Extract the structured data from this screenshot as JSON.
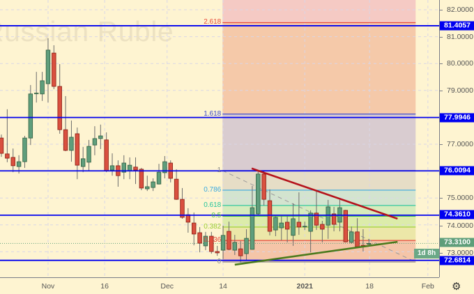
{
  "watermark": "Russian Ruble",
  "colors": {
    "background": "#fef4d1",
    "bull": "#5f9e7c",
    "bull_border": "#2f5e40",
    "bear": "#d9503f",
    "bear_border": "#8a1c12",
    "level_line": "#0000f0",
    "resistance_trendline": "#b5121b",
    "support_trendline": "#4a7a1c"
  },
  "chart_data": {
    "type": "candlestick",
    "ylim": [
      72.2,
      82.4
    ],
    "grid": true,
    "price_ticks": [
      "82.0000",
      "81.0000",
      "80.0000",
      "79.0000",
      "77.0000",
      "75.0000",
      "74.0000",
      "73.0000"
    ],
    "time_ticks": [
      {
        "label": "Nov",
        "bar": 8
      },
      {
        "label": "16",
        "bar": 17.7
      },
      {
        "label": "Dec",
        "bar": 28.4
      },
      {
        "label": "14",
        "bar": 38
      },
      {
        "label": "2021",
        "bar": 52
      },
      {
        "label": "18",
        "bar": 63.1
      },
      {
        "label": "Feb",
        "bar": 73.1
      }
    ],
    "candles": [
      [
        77.23,
        77.36,
        76.53,
        76.66
      ],
      [
        76.64,
        78.3,
        76.33,
        76.48
      ],
      [
        76.51,
        76.84,
        75.96,
        76.2
      ],
      [
        76.17,
        76.59,
        75.91,
        76.35
      ],
      [
        76.35,
        77.31,
        76.12,
        77.23
      ],
      [
        77.23,
        79.2,
        76.97,
        78.87
      ],
      [
        78.89,
        79.69,
        78.55,
        78.9
      ],
      [
        78.87,
        79.69,
        78.61,
        79.36
      ],
      [
        79.25,
        80.94,
        78.55,
        80.5
      ],
      [
        80.39,
        80.68,
        79.05,
        79.15
      ],
      [
        79.15,
        79.98,
        77.39,
        77.54
      ],
      [
        77.54,
        78.79,
        76.74,
        76.77
      ],
      [
        76.77,
        77.88,
        76.35,
        77.26
      ],
      [
        77.39,
        77.62,
        75.7,
        76.22
      ],
      [
        76.17,
        76.9,
        75.96,
        76.46
      ],
      [
        76.33,
        77.16,
        76.02,
        76.92
      ],
      [
        76.97,
        77.67,
        76.59,
        77.21
      ],
      [
        77.21,
        77.73,
        76.82,
        77.31
      ],
      [
        77.16,
        77.44,
        75.96,
        76.02
      ],
      [
        76.04,
        76.66,
        75.83,
        76.2
      ],
      [
        76.2,
        76.4,
        75.42,
        75.83
      ],
      [
        75.96,
        76.59,
        75.7,
        76.3
      ],
      [
        76.02,
        76.51,
        75.7,
        76.22
      ],
      [
        76.15,
        76.51,
        75.52,
        76.04
      ],
      [
        76.07,
        76.12,
        75.29,
        75.37
      ],
      [
        75.34,
        75.83,
        75.26,
        75.42
      ],
      [
        75.39,
        75.73,
        75.26,
        75.6
      ],
      [
        75.52,
        76.27,
        75.5,
        75.96
      ],
      [
        75.94,
        76.56,
        75.73,
        76.35
      ],
      [
        76.3,
        76.4,
        75.58,
        75.73
      ],
      [
        75.7,
        76.07,
        74.93,
        74.95
      ],
      [
        74.95,
        75.37,
        74.23,
        74.28
      ],
      [
        74.38,
        74.62,
        73.71,
        74.1
      ],
      [
        74.07,
        74.46,
        73.24,
        73.66
      ],
      [
        73.71,
        73.92,
        72.98,
        73.32
      ],
      [
        73.22,
        73.74,
        73.06,
        73.58
      ],
      [
        73.58,
        73.74,
        72.93,
        73.01
      ],
      [
        73.01,
        73.22,
        72.85,
        72.96
      ],
      [
        73.06,
        73.97,
        72.73,
        73.61
      ],
      [
        73.76,
        74.12,
        73.06,
        73.09
      ],
      [
        73.06,
        73.63,
        72.88,
        73.35
      ],
      [
        73.11,
        73.4,
        72.6,
        72.85
      ],
      [
        72.93,
        73.84,
        72.67,
        73.5
      ],
      [
        73.09,
        75.45,
        73.08,
        74.64
      ],
      [
        74.41,
        76.02,
        74.38,
        75.89
      ],
      [
        75.89,
        76.02,
        74.72,
        74.95
      ],
      [
        74.9,
        75.32,
        73.61,
        73.76
      ],
      [
        73.81,
        74.33,
        73.58,
        74.28
      ],
      [
        73.89,
        74.33,
        73.42,
        74.07
      ],
      [
        74.1,
        74.33,
        73.35,
        73.84
      ],
      [
        73.61,
        74.8,
        73.22,
        74.23
      ],
      [
        74.1,
        75.21,
        73.63,
        73.92
      ],
      [
        73.94,
        74.12,
        73.81,
        73.95
      ],
      [
        73.76,
        74.54,
        72.98,
        74.44
      ],
      [
        74.44,
        75.24,
        73.81,
        73.99
      ],
      [
        74.02,
        74.15,
        73.35,
        73.84
      ],
      [
        73.99,
        74.93,
        73.48,
        74.67
      ],
      [
        74.41,
        74.67,
        73.76,
        74.02
      ],
      [
        74.1,
        74.93,
        73.76,
        74.64
      ],
      [
        74.54,
        74.56,
        73.35,
        73.37
      ],
      [
        73.35,
        73.94,
        73.3,
        73.74
      ],
      [
        73.74,
        74.25,
        73.14,
        73.19
      ],
      [
        73.24,
        73.84,
        73.01,
        73.19
      ],
      [
        73.28,
        73.48,
        73.24,
        73.31
      ]
    ],
    "horizontal_levels": [
      {
        "label": "81.4057",
        "price": 81.4057
      },
      {
        "label": "77.9946",
        "price": 77.9946
      },
      {
        "label": "76.0094",
        "price": 76.0094
      },
      {
        "label": "74.3610",
        "price": 74.361
      },
      {
        "label": "72.6814",
        "price": 72.6814
      }
    ],
    "last_price": {
      "label": "73.3100",
      "price": 73.31,
      "countdown": "1d 8h"
    },
    "fibonacci": {
      "price_at_0": 72.62,
      "price_at_1": 76.02,
      "start_bar": 37.9,
      "end_bar": 71,
      "levels": [
        {
          "label": "0",
          "value": 0,
          "color": "#8a8a8a",
          "fill": "#f5c5a8"
        },
        {
          "label": "0.236",
          "value": 0.236,
          "color": "#e84a3a",
          "fill": "#ece7a8"
        },
        {
          "label": "0.382",
          "value": 0.382,
          "color": "#9acd32",
          "fill": "#dcecaa"
        },
        {
          "label": "0.5",
          "value": 0.5,
          "color": "#4cc24c",
          "fill": "#d6ecbc"
        },
        {
          "label": "0.618",
          "value": 0.618,
          "color": "#22c49a",
          "fill": "#d3e4cf"
        },
        {
          "label": "0.786",
          "value": 0.786,
          "color": "#38a8e0",
          "fill": "#e6ddc6"
        },
        {
          "label": "1",
          "value": 1,
          "color": "#8a8a8a",
          "fill": "#d9ccd0"
        },
        {
          "label": "1.618",
          "value": 1.618,
          "color": "#3a4ad0",
          "fill": "#f5c9a9"
        },
        {
          "label": "2.618",
          "value": 2.618,
          "color": "#e84a3a",
          "fill": "#f5cac4"
        }
      ]
    },
    "trendlines": [
      {
        "name": "resistance",
        "from": {
          "bar": 42.9,
          "price": 76.1
        },
        "to": {
          "bar": 67.9,
          "price": 74.23
        }
      },
      {
        "name": "support",
        "from": {
          "bar": 40.0,
          "price": 72.52
        },
        "to": {
          "bar": 67.9,
          "price": 73.37
        }
      },
      {
        "name": "fib-diagonal",
        "from": {
          "bar": 37.9,
          "price": 76.02
        },
        "to": {
          "bar": 71,
          "price": 72.62
        }
      }
    ]
  },
  "settings_icon": "gear-icon"
}
